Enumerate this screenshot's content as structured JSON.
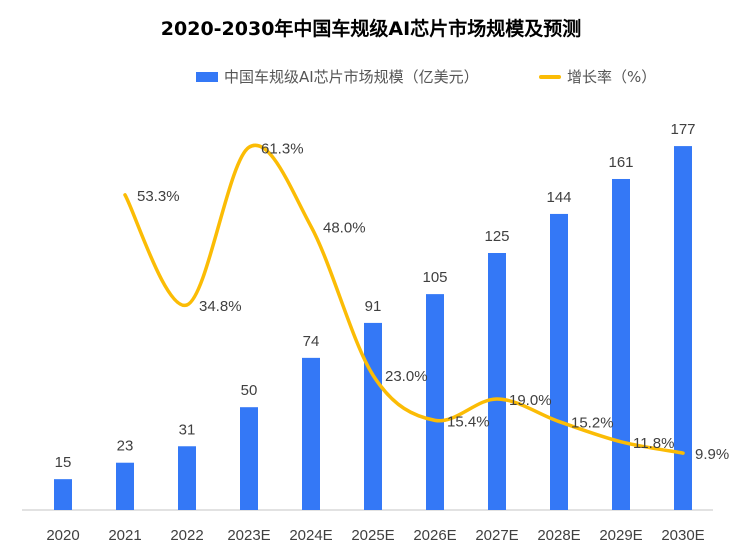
{
  "chart_data": {
    "type": "bar+line",
    "title": "2020-2030年中国车规级AI芯片市场规模及预测",
    "categories": [
      "2020",
      "2021",
      "2022",
      "2023E",
      "2024E",
      "2025E",
      "2026E",
      "2027E",
      "2028E",
      "2029E",
      "2030E"
    ],
    "series": [
      {
        "name": "中国车规级AI芯片市场规模（亿美元）",
        "type": "bar",
        "color": "#3478f6",
        "values": [
          15,
          23,
          31,
          50,
          74,
          91,
          105,
          125,
          144,
          161,
          177
        ],
        "labels": [
          "15",
          "23",
          "31",
          "50",
          "74",
          "91",
          "105",
          "125",
          "144",
          "161",
          "177"
        ]
      },
      {
        "name": "增长率（%）",
        "type": "line",
        "color": "#fbbc05",
        "smooth": true,
        "values": [
          null,
          53.3,
          34.8,
          61.3,
          48.0,
          23.0,
          15.4,
          19.0,
          15.2,
          11.8,
          9.9
        ],
        "labels": [
          "",
          "53.3%",
          "34.8%",
          "61.3%",
          "48.0%",
          "23.0%",
          "15.4%",
          "19.0%",
          "15.2%",
          "11.8%",
          "9.9%"
        ]
      }
    ],
    "legend": "top",
    "grid": false,
    "y_axis_visible": false
  }
}
